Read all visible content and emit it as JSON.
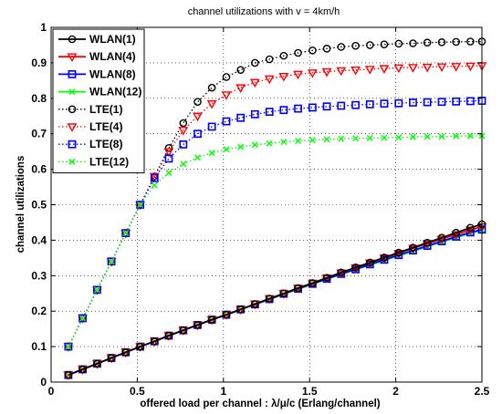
{
  "chart_data": {
    "type": "line",
    "title": "channel utilizations with v = 4km/h",
    "xlabel": "offered load per channel : λ/μ/c (Erlang/channel)",
    "ylabel": "channel utilizations",
    "xlim": [
      0,
      2.5
    ],
    "ylim": [
      0,
      1
    ],
    "xticks": [
      "0",
      "0.5",
      "1",
      "1.5",
      "2",
      "2.5"
    ],
    "yticks": [
      "0",
      "0.1",
      "0.2",
      "0.3",
      "0.4",
      "0.5",
      "0.6",
      "0.7",
      "0.8",
      "0.9",
      "1"
    ],
    "grid": true,
    "legend_position": "top-left",
    "x": [
      0.1,
      0.183,
      0.267,
      0.35,
      0.433,
      0.517,
      0.6,
      0.683,
      0.767,
      0.85,
      0.933,
      1.017,
      1.1,
      1.183,
      1.267,
      1.35,
      1.433,
      1.517,
      1.6,
      1.683,
      1.767,
      1.85,
      1.933,
      2.017,
      2.1,
      2.183,
      2.267,
      2.35,
      2.433,
      2.5
    ],
    "series": [
      {
        "name": "WLAN(1)",
        "line": "solid",
        "marker": "circle",
        "color": "#000000",
        "values": [
          0.02,
          0.036,
          0.052,
          0.068,
          0.084,
          0.1,
          0.115,
          0.131,
          0.146,
          0.161,
          0.176,
          0.19,
          0.205,
          0.22,
          0.235,
          0.25,
          0.265,
          0.279,
          0.294,
          0.309,
          0.323,
          0.337,
          0.351,
          0.365,
          0.379,
          0.393,
          0.407,
          0.421,
          0.435,
          0.445
        ]
      },
      {
        "name": "WLAN(4)",
        "line": "solid",
        "marker": "triangle-down",
        "color": "#ff0000",
        "values": [
          0.02,
          0.036,
          0.052,
          0.068,
          0.084,
          0.1,
          0.115,
          0.131,
          0.146,
          0.161,
          0.176,
          0.19,
          0.205,
          0.22,
          0.235,
          0.25,
          0.265,
          0.279,
          0.294,
          0.308,
          0.322,
          0.336,
          0.35,
          0.363,
          0.377,
          0.39,
          0.403,
          0.416,
          0.429,
          0.438
        ]
      },
      {
        "name": "WLAN(8)",
        "line": "solid",
        "marker": "square",
        "color": "#0000ff",
        "values": [
          0.02,
          0.036,
          0.052,
          0.068,
          0.084,
          0.1,
          0.115,
          0.131,
          0.146,
          0.161,
          0.176,
          0.19,
          0.205,
          0.219,
          0.234,
          0.249,
          0.263,
          0.277,
          0.291,
          0.305,
          0.318,
          0.332,
          0.345,
          0.358,
          0.371,
          0.384,
          0.397,
          0.41,
          0.422,
          0.43
        ]
      },
      {
        "name": "WLAN(12)",
        "line": "solid",
        "marker": "x",
        "color": "#00ff00",
        "values": [
          0.02,
          0.036,
          0.052,
          0.068,
          0.084,
          0.1,
          0.115,
          0.131,
          0.146,
          0.161,
          0.176,
          0.19,
          0.205,
          0.219,
          0.233,
          0.248,
          0.262,
          0.276,
          0.29,
          0.304,
          0.317,
          0.33,
          0.343,
          0.356,
          0.369,
          0.382,
          0.395,
          0.407,
          0.42,
          0.428
        ]
      },
      {
        "name": "LTE(1)",
        "line": "dotted",
        "marker": "circle",
        "color": "#000000",
        "values": [
          0.1,
          0.18,
          0.26,
          0.34,
          0.42,
          0.5,
          0.58,
          0.66,
          0.73,
          0.79,
          0.83,
          0.86,
          0.88,
          0.9,
          0.91,
          0.92,
          0.928,
          0.935,
          0.94,
          0.945,
          0.948,
          0.95,
          0.952,
          0.954,
          0.955,
          0.957,
          0.958,
          0.959,
          0.96,
          0.96
        ]
      },
      {
        "name": "LTE(4)",
        "line": "dotted",
        "marker": "triangle-down",
        "color": "#ff0000",
        "values": [
          0.1,
          0.18,
          0.26,
          0.34,
          0.42,
          0.5,
          0.58,
          0.65,
          0.71,
          0.75,
          0.785,
          0.81,
          0.83,
          0.845,
          0.855,
          0.862,
          0.868,
          0.872,
          0.875,
          0.878,
          0.88,
          0.882,
          0.884,
          0.886,
          0.887,
          0.888,
          0.889,
          0.89,
          0.891,
          0.892
        ]
      },
      {
        "name": "LTE(8)",
        "line": "dotted",
        "marker": "square",
        "color": "#0000ff",
        "values": [
          0.1,
          0.18,
          0.26,
          0.34,
          0.42,
          0.5,
          0.575,
          0.63,
          0.67,
          0.7,
          0.72,
          0.735,
          0.745,
          0.755,
          0.762,
          0.767,
          0.771,
          0.774,
          0.777,
          0.779,
          0.781,
          0.783,
          0.785,
          0.786,
          0.788,
          0.789,
          0.79,
          0.791,
          0.792,
          0.793
        ]
      },
      {
        "name": "LTE(12)",
        "line": "dotted",
        "marker": "x",
        "color": "#00ff00",
        "values": [
          0.1,
          0.18,
          0.26,
          0.34,
          0.42,
          0.5,
          0.555,
          0.59,
          0.615,
          0.633,
          0.646,
          0.656,
          0.663,
          0.669,
          0.673,
          0.677,
          0.68,
          0.682,
          0.684,
          0.686,
          0.687,
          0.688,
          0.689,
          0.69,
          0.691,
          0.692,
          0.692,
          0.693,
          0.694,
          0.694
        ]
      }
    ]
  }
}
